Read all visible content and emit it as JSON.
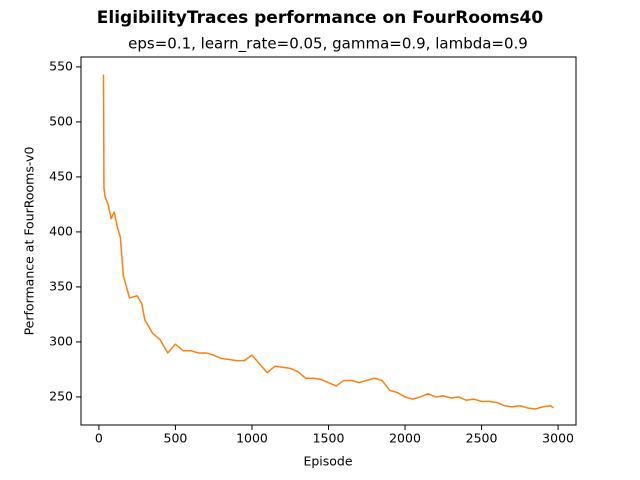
{
  "chart_data": {
    "type": "line",
    "title": "EligibilityTraces performance on FourRooms40",
    "subtitle": "eps=0.1, learn_rate=0.05, gamma=0.9, lambda=0.9",
    "x_label": "Episode",
    "y_label": "Performance at FourRooms-v0",
    "x": [
      30,
      33,
      40,
      60,
      80,
      100,
      120,
      140,
      160,
      180,
      200,
      250,
      280,
      300,
      350,
      400,
      450,
      500,
      550,
      600,
      650,
      700,
      750,
      800,
      850,
      900,
      950,
      1000,
      1050,
      1100,
      1150,
      1200,
      1250,
      1300,
      1350,
      1400,
      1450,
      1500,
      1550,
      1600,
      1650,
      1700,
      1750,
      1800,
      1850,
      1900,
      1950,
      2000,
      2050,
      2100,
      2150,
      2200,
      2250,
      2300,
      2350,
      2400,
      2450,
      2500,
      2550,
      2600,
      2650,
      2700,
      2750,
      2800,
      2850,
      2900,
      2950,
      2970
    ],
    "series": [
      {
        "name": "EligibilityTraces",
        "color": "#ff7f0e",
        "values": [
          543,
          440,
          432,
          425,
          412,
          418,
          405,
          395,
          360,
          350,
          340,
          342,
          335,
          320,
          308,
          302,
          290,
          298,
          292,
          292,
          290,
          290,
          288,
          285,
          284,
          283,
          283,
          288,
          280,
          272,
          278,
          277,
          276,
          273,
          267,
          267,
          266,
          263,
          260,
          265,
          265,
          263,
          265,
          267,
          265,
          256,
          254,
          250,
          248,
          250,
          253,
          250,
          251,
          249,
          250,
          247,
          248,
          246,
          246,
          245,
          242,
          241,
          242,
          240,
          239,
          241,
          242,
          240
        ]
      }
    ],
    "xlim": [
      -117,
      3117
    ],
    "xticks": [
      0,
      500,
      1000,
      1500,
      2000,
      2500,
      3000
    ],
    "ylim": [
      224.5,
      559
    ],
    "yticks": [
      250,
      300,
      350,
      400,
      450,
      500,
      550
    ],
    "grid": false
  }
}
